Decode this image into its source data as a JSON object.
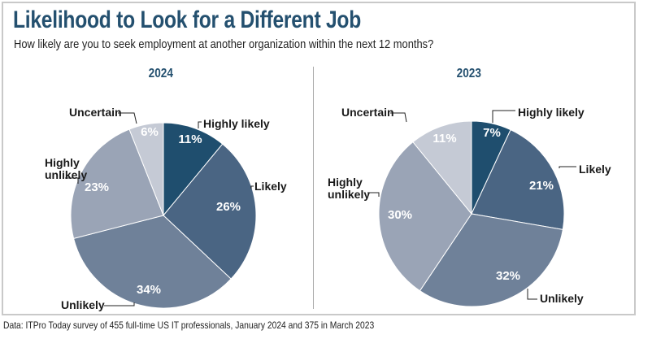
{
  "title": "Likelihood to Look for a Different Job",
  "subtitle": "How likely are you to seek employment at another organization within the next 12 months?",
  "footer": "Data: ITPro Today survey of 455 full-time US IT professionals, January 2024 and 375 in March 2023",
  "colors": {
    "Highly likely": "#1f4e6e",
    "Likely": "#4a6583",
    "Unlikely": "#6f8199",
    "Highly unlikely": "#9aa4b6",
    "Uncertain": "#c5cad5",
    "title": "#24506f"
  },
  "chart_data": [
    {
      "type": "pie",
      "title": "2024",
      "categories": [
        "Highly likely",
        "Likely",
        "Unlikely",
        "Highly unlikely",
        "Uncertain"
      ],
      "values": [
        11,
        26,
        34,
        23,
        6
      ],
      "value_labels": [
        "11%",
        "26%",
        "34%",
        "23%",
        "6%"
      ]
    },
    {
      "type": "pie",
      "title": "2023",
      "categories": [
        "Highly likely",
        "Likely",
        "Unlikely",
        "Highly unlikely",
        "Uncertain"
      ],
      "values": [
        7,
        21,
        32,
        30,
        11
      ],
      "value_labels": [
        "7%",
        "21%",
        "32%",
        "30%",
        "11%"
      ]
    }
  ]
}
